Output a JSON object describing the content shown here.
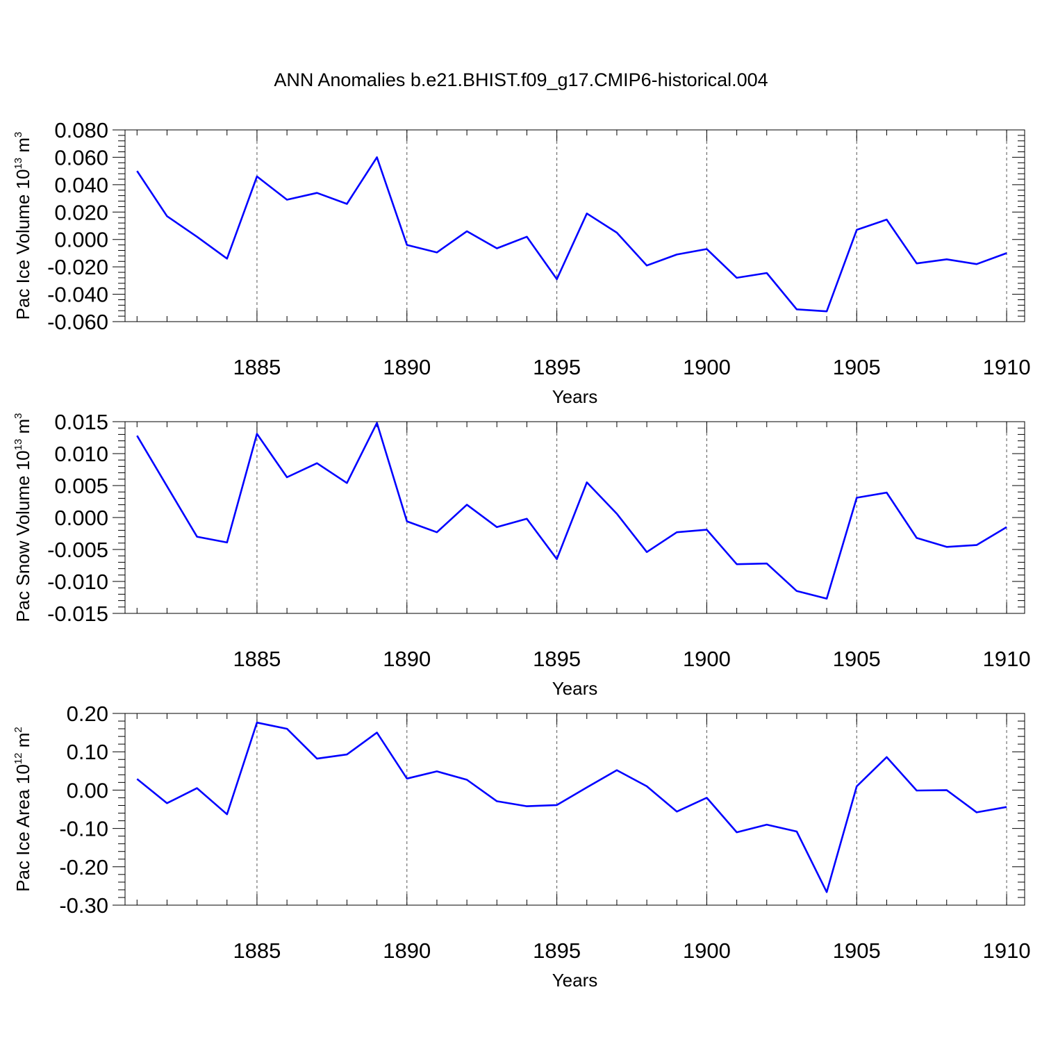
{
  "title": "ANN Anomalies b.e21.BHIST.f09_g17.CMIP6-historical.004",
  "line_color": "#0000ff",
  "chart_data": [
    {
      "type": "line",
      "title": "ANN Anomalies b.e21.BHIST.f09_g17.CMIP6-historical.004",
      "xlabel": "Years",
      "ylabel": {
        "main": "Pac Ice Volume 10",
        "exponent": "13",
        "unit": " m",
        "unit_exponent": "3"
      },
      "xlim": [
        1880.6,
        1910.6
      ],
      "ylim": [
        -0.06,
        0.08
      ],
      "x_ticks": [
        1885,
        1890,
        1895,
        1900,
        1905,
        1910
      ],
      "y_ticks": [
        -0.06,
        -0.04,
        -0.02,
        0.0,
        0.02,
        0.04,
        0.06,
        0.08
      ],
      "y_tick_labels": [
        "-0.060",
        "-0.040",
        "-0.020",
        "0.000",
        "0.020",
        "0.040",
        "0.060",
        "0.080"
      ],
      "x": [
        1881,
        1882,
        1883,
        1884,
        1885,
        1886,
        1887,
        1888,
        1889,
        1890,
        1891,
        1892,
        1893,
        1894,
        1895,
        1896,
        1897,
        1898,
        1899,
        1900,
        1901,
        1902,
        1903,
        1904,
        1905,
        1906,
        1907,
        1908,
        1909,
        1910
      ],
      "series": [
        {
          "values": [
            0.05,
            0.017,
            0.002,
            -0.014,
            0.046,
            0.029,
            0.034,
            0.026,
            0.06,
            -0.004,
            -0.0095,
            0.006,
            -0.0065,
            0.002,
            -0.029,
            0.019,
            0.005,
            -0.019,
            -0.011,
            -0.007,
            -0.028,
            -0.0245,
            -0.051,
            -0.0525,
            0.007,
            0.0145,
            -0.0175,
            -0.0145,
            -0.018,
            -0.01
          ]
        }
      ]
    },
    {
      "type": "line",
      "xlabel": "Years",
      "ylabel": {
        "main": "Pac Snow Volume 10",
        "exponent": "13",
        "unit": " m",
        "unit_exponent": "3"
      },
      "xlim": [
        1880.6,
        1910.6
      ],
      "ylim": [
        -0.015,
        0.015
      ],
      "x_ticks": [
        1885,
        1890,
        1895,
        1900,
        1905,
        1910
      ],
      "y_ticks": [
        -0.015,
        -0.01,
        -0.005,
        0.0,
        0.005,
        0.01,
        0.015
      ],
      "y_tick_labels": [
        "-0.015",
        "-0.010",
        "-0.005",
        "0.000",
        "0.005",
        "0.010",
        "0.015"
      ],
      "x": [
        1881,
        1882,
        1883,
        1884,
        1885,
        1886,
        1887,
        1888,
        1889,
        1890,
        1891,
        1892,
        1893,
        1894,
        1895,
        1896,
        1897,
        1898,
        1899,
        1900,
        1901,
        1902,
        1903,
        1904,
        1905,
        1906,
        1907,
        1908,
        1909,
        1910
      ],
      "series": [
        {
          "values": [
            0.0128,
            0.0049,
            -0.003,
            -0.0039,
            0.0131,
            0.0063,
            0.0085,
            0.0054,
            0.0148,
            -0.0006,
            -0.0023,
            0.002,
            -0.0015,
            -0.0002,
            -0.0065,
            0.0055,
            0.0006,
            -0.0054,
            -0.0023,
            -0.0019,
            -0.0073,
            -0.0072,
            -0.0115,
            -0.0127,
            0.0031,
            0.0039,
            -0.0032,
            -0.0046,
            -0.0043,
            -0.0015
          ]
        }
      ]
    },
    {
      "type": "line",
      "xlabel": "Years",
      "ylabel": {
        "main": "Pac Ice Area 10",
        "exponent": "12",
        "unit": " m",
        "unit_exponent": "2"
      },
      "xlim": [
        1880.6,
        1910.6
      ],
      "ylim": [
        -0.3,
        0.2
      ],
      "x_ticks": [
        1885,
        1890,
        1895,
        1900,
        1905,
        1910
      ],
      "y_ticks": [
        -0.3,
        -0.2,
        -0.1,
        0.0,
        0.1,
        0.2
      ],
      "y_tick_labels": [
        "-0.30",
        "-0.20",
        "-0.10",
        "0.00",
        "0.10",
        "0.20"
      ],
      "x": [
        1881,
        1882,
        1883,
        1884,
        1885,
        1886,
        1887,
        1888,
        1889,
        1890,
        1891,
        1892,
        1893,
        1894,
        1895,
        1896,
        1897,
        1898,
        1899,
        1900,
        1901,
        1902,
        1903,
        1904,
        1905,
        1906,
        1907,
        1908,
        1909,
        1910
      ],
      "series": [
        {
          "values": [
            0.029,
            -0.034,
            0.005,
            -0.063,
            0.176,
            0.16,
            0.082,
            0.093,
            0.15,
            0.03,
            0.049,
            0.027,
            -0.029,
            -0.042,
            -0.039,
            0.007,
            0.052,
            0.01,
            -0.056,
            -0.02,
            -0.11,
            -0.09,
            -0.108,
            -0.266,
            0.01,
            0.086,
            -0.001,
            0.0,
            -0.058,
            -0.044
          ]
        }
      ]
    }
  ]
}
